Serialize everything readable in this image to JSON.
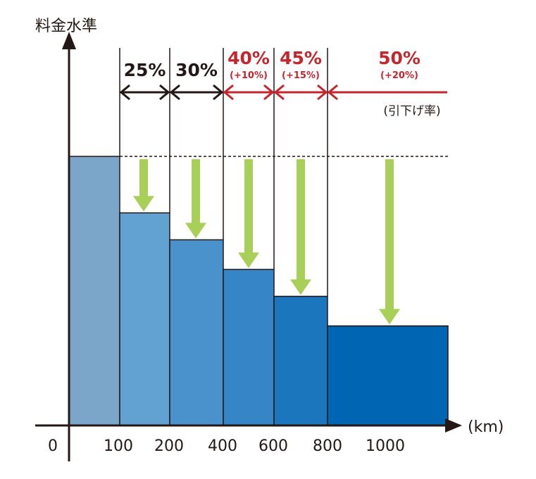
{
  "chart_data": {
    "type": "bar",
    "title": "",
    "ylabel": "料金水準",
    "xlabel": "(km)",
    "x_tick_labels": [
      "0",
      "100",
      "200",
      "400",
      "600",
      "800",
      "1000"
    ],
    "categories": [
      "0-100",
      "100-200",
      "200-400",
      "400-600",
      "600-800",
      "800-"
    ],
    "values": [
      100,
      79,
      69,
      58,
      48,
      37
    ],
    "ylim": [
      0,
      100
    ],
    "bar_colors": [
      "#7BA6C9",
      "#62A2D2",
      "#4A92CC",
      "#3585C7",
      "#1C76BE",
      "#0066B3"
    ],
    "discounts": [
      {
        "label": "25%",
        "sub": "",
        "color": "#231815"
      },
      {
        "label": "30%",
        "sub": "",
        "color": "#231815"
      },
      {
        "label": "40%",
        "sub": "(+10%)",
        "color": "#C4262E"
      },
      {
        "label": "45%",
        "sub": "(+15%)",
        "color": "#C4262E"
      },
      {
        "label": "50%",
        "sub": "(+20%)",
        "color": "#C4262E"
      }
    ],
    "discount_caption": "(引下げ率)",
    "arrow_color": "#A8CF57"
  }
}
